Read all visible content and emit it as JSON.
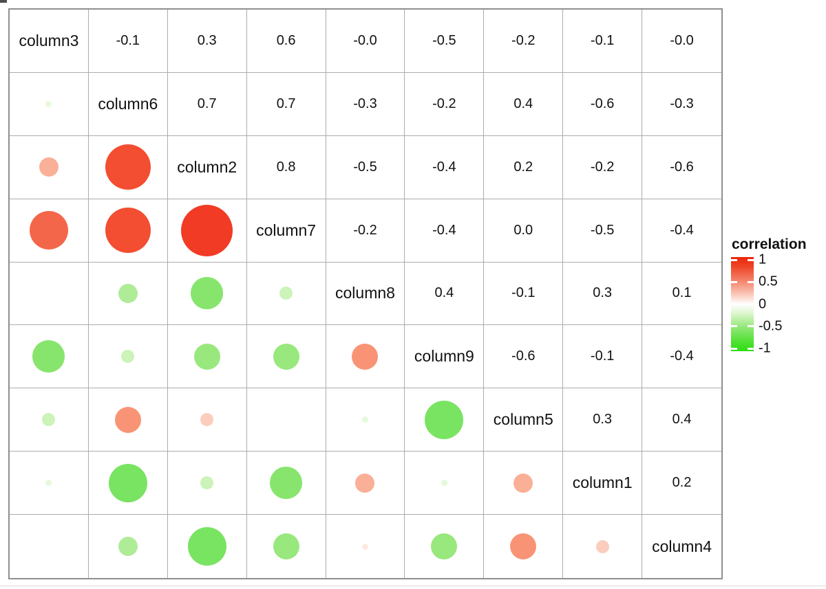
{
  "matrix": {
    "labels": [
      "column3",
      "column6",
      "column2",
      "column7",
      "column8",
      "column9",
      "column5",
      "column1",
      "column4"
    ],
    "upper_values": [
      [
        "-0.1",
        "0.3",
        "0.6",
        "-0.0",
        "-0.5",
        "-0.2",
        "-0.1",
        "-0.0"
      ],
      [
        "0.7",
        "0.7",
        "-0.3",
        "-0.2",
        "0.4",
        "-0.6",
        "-0.3"
      ],
      [
        "0.8",
        "-0.5",
        "-0.4",
        "0.2",
        "-0.2",
        "-0.6"
      ],
      [
        "-0.2",
        "-0.4",
        "0.0",
        "-0.5",
        "-0.4"
      ],
      [
        "0.4",
        "-0.1",
        "0.3",
        "0.1"
      ],
      [
        "-0.6",
        "-0.1",
        "-0.4"
      ],
      [
        "0.3",
        "0.4"
      ],
      [
        "0.2"
      ]
    ]
  },
  "legend": {
    "title": "correlation",
    "ticks": [
      "1",
      "0.5",
      "0",
      "-0.5",
      "-1"
    ],
    "top_color": "#EB250B",
    "zero_color": "#FFFFFF",
    "bottom_color": "#2EDE13"
  },
  "circle": {
    "max_diameter": 94
  },
  "palette": {
    "positive": {
      "0.1": "#FEE9E0",
      "0.2": "#FBCDBD",
      "0.3": "#FAAF97",
      "0.4": "#F89475",
      "0.5": "#F67A58",
      "0.6": "#F4664A",
      "0.7": "#F34E31",
      "0.8": "#F23B25",
      "1.0": "#EB250B"
    },
    "negative": {
      "0.1": "#E7F9DB",
      "0.2": "#CCF3B8",
      "0.3": "#AFEC97",
      "0.4": "#98E87D",
      "0.5": "#87E56D",
      "0.6": "#79E362",
      "1.0": "#2EDE13"
    }
  },
  "chart_data": {
    "type": "heatmap",
    "subtype": "correlation-matrix",
    "title": "",
    "variables": [
      "column3",
      "column6",
      "column2",
      "column7",
      "column8",
      "column9",
      "column5",
      "column1",
      "column4"
    ],
    "upper_triangle_values": [
      [
        -0.1,
        0.3,
        0.6,
        -0.0,
        -0.5,
        -0.2,
        -0.1,
        -0.0
      ],
      [
        0.7,
        0.7,
        -0.3,
        -0.2,
        0.4,
        -0.6,
        -0.3
      ],
      [
        0.8,
        -0.5,
        -0.4,
        0.2,
        -0.2,
        -0.6
      ],
      [
        -0.2,
        -0.4,
        0.0,
        -0.5,
        -0.4
      ],
      [
        0.4,
        -0.1,
        0.3,
        0.1
      ],
      [
        -0.6,
        -0.1,
        -0.4
      ],
      [
        0.3,
        0.4
      ],
      [
        0.2
      ]
    ],
    "symmetric": true,
    "diagonal": "variable names",
    "upper_triangle": "numeric correlation values",
    "lower_triangle": "circles sized by |r|, red for positive, green for negative",
    "value_range": [
      -1,
      1
    ],
    "legend_title": "correlation",
    "legend_ticks": [
      1,
      0.5,
      0,
      -0.5,
      -1
    ],
    "legend_position": "right",
    "grid": true
  }
}
